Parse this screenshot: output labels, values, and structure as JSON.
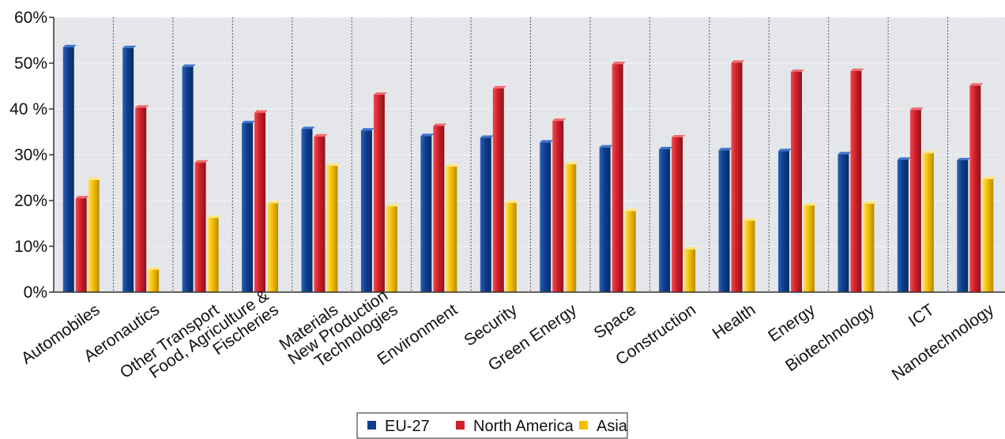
{
  "chart_data": {
    "type": "bar",
    "categories": [
      [
        "Automobiles"
      ],
      [
        "Aeronautics"
      ],
      [
        "Other Transport"
      ],
      [
        "Food, Agriculture &",
        "Fischeries"
      ],
      [
        "Materials"
      ],
      [
        "New Production",
        "Technologies"
      ],
      [
        "Environment"
      ],
      [
        "Security"
      ],
      [
        "Green Energy"
      ],
      [
        "Space"
      ],
      [
        "Construction"
      ],
      [
        "Health"
      ],
      [
        "Energy"
      ],
      [
        "Biotechnology"
      ],
      [
        "ICT"
      ],
      [
        "Nanotechnology"
      ]
    ],
    "series": [
      {
        "name": "EU-27",
        "color": "#0d3f8f",
        "values": [
          53.5,
          53.3,
          49.2,
          36.9,
          35.6,
          35.3,
          34.1,
          33.7,
          32.7,
          31.6,
          31.2,
          31.0,
          30.8,
          30.1,
          28.9,
          28.8
        ]
      },
      {
        "name": "North America",
        "color": "#d0202a",
        "values": [
          20.5,
          40.3,
          28.3,
          39.2,
          34.0,
          43.1,
          36.3,
          44.5,
          37.4,
          49.8,
          33.8,
          50.1,
          48.1,
          48.3,
          39.8,
          45.1
        ]
      },
      {
        "name": "Asia",
        "color": "#f5c000",
        "values": [
          24.5,
          4.9,
          16.2,
          19.4,
          27.6,
          18.7,
          27.4,
          19.5,
          27.9,
          17.7,
          9.3,
          15.6,
          18.9,
          19.3,
          30.3,
          24.7
        ]
      }
    ],
    "yticks": [
      "0%",
      "10%",
      "20%",
      "30%",
      "40 %",
      "50%",
      "60%"
    ],
    "ylim": [
      0,
      60
    ],
    "grid": true,
    "legend": "bottom-center",
    "plot_background": "#e4e6ea"
  }
}
